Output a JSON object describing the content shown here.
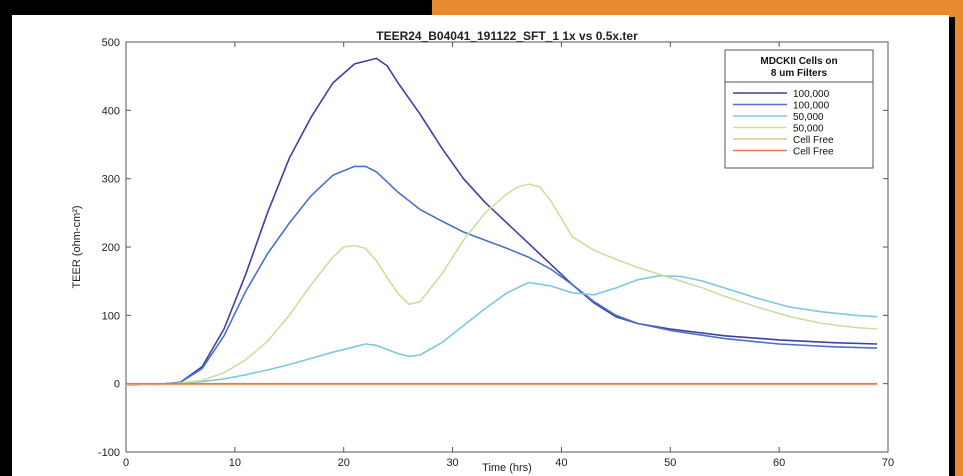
{
  "chart_data": {
    "type": "line",
    "title": "TEER24_B04041_191122_SFT_1 1x vs 0.5x.ter",
    "xlabel": "Time (hrs)",
    "ylabel": "TEER (ohm-cm²)",
    "xlim": [
      0,
      70
    ],
    "ylim": [
      -100,
      500
    ],
    "x_ticks": [
      0,
      10,
      20,
      30,
      40,
      50,
      60,
      70
    ],
    "y_ticks": [
      -100,
      0,
      100,
      200,
      300,
      400,
      500
    ],
    "grid": false,
    "legend": {
      "placement": "top-right",
      "title_lines": [
        "MDCKII Cells on",
        "8 um Filters"
      ]
    },
    "series": [
      {
        "name": "100,000",
        "color": "#3f3fa6",
        "points": [
          [
            0,
            -2
          ],
          [
            3,
            -1
          ],
          [
            5,
            2
          ],
          [
            7,
            25
          ],
          [
            9,
            80
          ],
          [
            11,
            160
          ],
          [
            13,
            250
          ],
          [
            15,
            330
          ],
          [
            17,
            390
          ],
          [
            19,
            440
          ],
          [
            21,
            468
          ],
          [
            22,
            472
          ],
          [
            23,
            476
          ],
          [
            24,
            465
          ],
          [
            25,
            440
          ],
          [
            27,
            395
          ],
          [
            29,
            345
          ],
          [
            31,
            300
          ],
          [
            33,
            265
          ],
          [
            35,
            235
          ],
          [
            37,
            205
          ],
          [
            39,
            175
          ],
          [
            41,
            145
          ],
          [
            43,
            118
          ],
          [
            45,
            98
          ],
          [
            47,
            88
          ],
          [
            50,
            80
          ],
          [
            55,
            70
          ],
          [
            60,
            64
          ],
          [
            65,
            60
          ],
          [
            69,
            58
          ]
        ]
      },
      {
        "name": "100,000",
        "color": "#4a72c8",
        "points": [
          [
            0,
            -2
          ],
          [
            3,
            -1
          ],
          [
            5,
            2
          ],
          [
            7,
            22
          ],
          [
            9,
            70
          ],
          [
            11,
            135
          ],
          [
            13,
            190
          ],
          [
            15,
            235
          ],
          [
            17,
            275
          ],
          [
            19,
            305
          ],
          [
            21,
            318
          ],
          [
            22,
            318
          ],
          [
            23,
            310
          ],
          [
            24,
            295
          ],
          [
            25,
            280
          ],
          [
            27,
            255
          ],
          [
            29,
            238
          ],
          [
            31,
            222
          ],
          [
            33,
            210
          ],
          [
            35,
            198
          ],
          [
            37,
            185
          ],
          [
            39,
            168
          ],
          [
            41,
            145
          ],
          [
            43,
            120
          ],
          [
            45,
            100
          ],
          [
            47,
            88
          ],
          [
            50,
            78
          ],
          [
            55,
            66
          ],
          [
            60,
            58
          ],
          [
            65,
            54
          ],
          [
            69,
            52
          ]
        ]
      },
      {
        "name": "50,000",
        "color": "#7fc8e0",
        "points": [
          [
            0,
            -2
          ],
          [
            3,
            -1
          ],
          [
            5,
            1
          ],
          [
            7,
            3
          ],
          [
            9,
            7
          ],
          [
            11,
            13
          ],
          [
            13,
            20
          ],
          [
            15,
            28
          ],
          [
            17,
            37
          ],
          [
            19,
            46
          ],
          [
            21,
            54
          ],
          [
            22,
            58
          ],
          [
            23,
            56
          ],
          [
            24,
            50
          ],
          [
            25,
            44
          ],
          [
            26,
            40
          ],
          [
            27,
            42
          ],
          [
            29,
            60
          ],
          [
            31,
            85
          ],
          [
            33,
            110
          ],
          [
            35,
            133
          ],
          [
            37,
            148
          ],
          [
            39,
            143
          ],
          [
            41,
            133
          ],
          [
            43,
            130
          ],
          [
            45,
            140
          ],
          [
            47,
            152
          ],
          [
            49,
            158
          ],
          [
            51,
            157
          ],
          [
            53,
            150
          ],
          [
            55,
            140
          ],
          [
            58,
            125
          ],
          [
            61,
            112
          ],
          [
            64,
            105
          ],
          [
            67,
            100
          ],
          [
            69,
            98
          ]
        ]
      },
      {
        "name": "50,000",
        "color": "#c9e0a0",
        "points": [
          [
            0,
            -2
          ],
          [
            3,
            -1
          ],
          [
            5,
            1
          ],
          [
            7,
            5
          ],
          [
            9,
            16
          ],
          [
            11,
            35
          ],
          [
            13,
            62
          ],
          [
            15,
            100
          ],
          [
            17,
            145
          ],
          [
            19,
            185
          ],
          [
            20,
            200
          ],
          [
            21,
            202
          ],
          [
            22,
            198
          ],
          [
            23,
            180
          ],
          [
            24,
            155
          ],
          [
            25,
            132
          ],
          [
            26,
            116
          ],
          [
            27,
            120
          ],
          [
            29,
            160
          ],
          [
            31,
            210
          ],
          [
            33,
            250
          ],
          [
            35,
            278
          ],
          [
            36,
            288
          ],
          [
            37,
            292
          ],
          [
            38,
            288
          ],
          [
            39,
            268
          ],
          [
            40,
            242
          ],
          [
            41,
            215
          ],
          [
            43,
            195
          ],
          [
            45,
            182
          ],
          [
            47,
            170
          ],
          [
            49,
            160
          ],
          [
            51,
            150
          ],
          [
            53,
            140
          ],
          [
            55,
            128
          ],
          [
            58,
            112
          ],
          [
            61,
            98
          ],
          [
            64,
            88
          ],
          [
            67,
            82
          ],
          [
            69,
            80
          ]
        ]
      },
      {
        "name": "Cell Free",
        "color": "#e8bf84",
        "points": [
          [
            0,
            -1
          ],
          [
            10,
            -1
          ],
          [
            20,
            -1
          ],
          [
            30,
            -1
          ],
          [
            40,
            -1
          ],
          [
            50,
            -1
          ],
          [
            60,
            -1
          ],
          [
            69,
            -1
          ]
        ]
      },
      {
        "name": "Cell Free",
        "color": "#e07a62",
        "points": [
          [
            0,
            0
          ],
          [
            10,
            0
          ],
          [
            20,
            0
          ],
          [
            30,
            0
          ],
          [
            40,
            0
          ],
          [
            50,
            0
          ],
          [
            60,
            0
          ],
          [
            69,
            0
          ]
        ]
      }
    ]
  }
}
